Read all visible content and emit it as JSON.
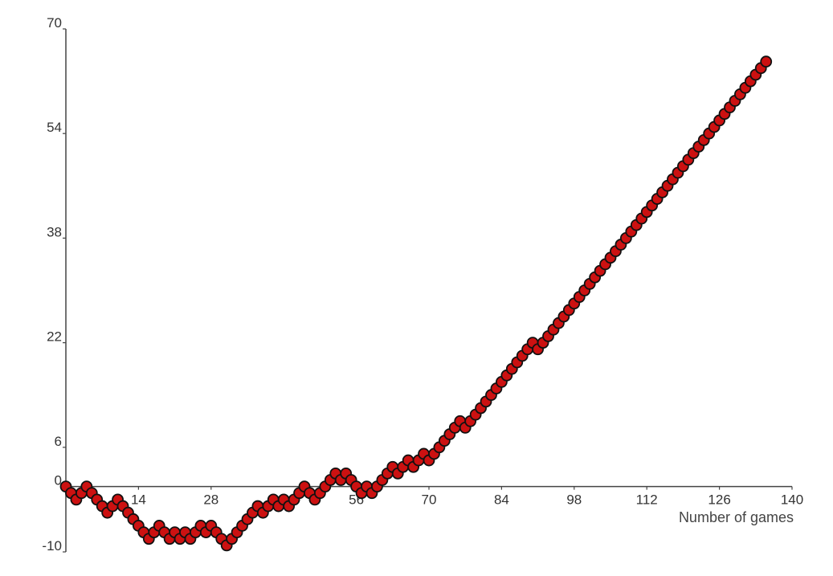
{
  "chart_data": {
    "type": "scatter",
    "title": "",
    "xlabel": "Number of games",
    "ylabel": "",
    "xlim": [
      0,
      140
    ],
    "ylim": [
      -10,
      70
    ],
    "x_ticks": [
      14,
      28,
      56,
      70,
      84,
      98,
      112,
      126,
      140
    ],
    "x_tick_labels": [
      "14",
      "28",
      "56",
      "70",
      "84",
      "98",
      "112",
      "126",
      "140"
    ],
    "y_ticks": [
      -10,
      0,
      6,
      22,
      38,
      54,
      70
    ],
    "y_tick_labels": [
      "-10",
      "0",
      "6",
      "22",
      "38",
      "54",
      "70"
    ],
    "grid": false,
    "legend": "none",
    "marker_color": "#cc1111",
    "marker_edge_color": "#111111",
    "series": [
      {
        "x": [
          0,
          1,
          2,
          3,
          4,
          5,
          6,
          7,
          8,
          9,
          10,
          11,
          12,
          13,
          14,
          15,
          16,
          17,
          18,
          19,
          20,
          21,
          22,
          23,
          24,
          25,
          26,
          27,
          28,
          29,
          30,
          31,
          32,
          33,
          34,
          35,
          36,
          37,
          38,
          39,
          40,
          41,
          42,
          43,
          44,
          45,
          46,
          47,
          48,
          49,
          50,
          51,
          52,
          53,
          54,
          55,
          56,
          57,
          58,
          59,
          60,
          61,
          62,
          63,
          64,
          65,
          66,
          67,
          68,
          69,
          70,
          71,
          72,
          73,
          74,
          75,
          76,
          77,
          78,
          79,
          80,
          81,
          82,
          83,
          84,
          85,
          86,
          87,
          88,
          89,
          90,
          91,
          92,
          93,
          94,
          95,
          96,
          97,
          98,
          99,
          100,
          101,
          102,
          103,
          104,
          105,
          106,
          107,
          108,
          109,
          110,
          111,
          112,
          113,
          114,
          115,
          116,
          117,
          118,
          119,
          120,
          121,
          122,
          123,
          124,
          125,
          126,
          127,
          128,
          129,
          130,
          131,
          132,
          133,
          134,
          135
        ],
        "y": [
          0,
          -1,
          -2,
          -1,
          0,
          -1,
          -2,
          -3,
          -4,
          -3,
          -2,
          -3,
          -4,
          -5,
          -6,
          -7,
          -8,
          -7,
          -6,
          -7,
          -8,
          -7,
          -8,
          -7,
          -8,
          -7,
          -6,
          -7,
          -6,
          -7,
          -8,
          -9,
          -8,
          -7,
          -6,
          -5,
          -4,
          -3,
          -4,
          -3,
          -2,
          -3,
          -2,
          -3,
          -2,
          -1,
          0,
          -1,
          -2,
          -1,
          0,
          1,
          2,
          1,
          2,
          1,
          0,
          -1,
          0,
          -1,
          0,
          1,
          2,
          3,
          2,
          3,
          4,
          3,
          4,
          5,
          4,
          5,
          6,
          7,
          8,
          9,
          10,
          9,
          10,
          11,
          12,
          13,
          14,
          15,
          16,
          17,
          18,
          19,
          20,
          21,
          22,
          21,
          22,
          23,
          24,
          25,
          26,
          27,
          28,
          29,
          30,
          31,
          32,
          33,
          34,
          35,
          36,
          37,
          38,
          39,
          40,
          41,
          42,
          43,
          44,
          45,
          46,
          47,
          48,
          49,
          50,
          51,
          52,
          53,
          54,
          55,
          56,
          57,
          58,
          59,
          60,
          61,
          62,
          63,
          64,
          65
        ]
      }
    ]
  }
}
